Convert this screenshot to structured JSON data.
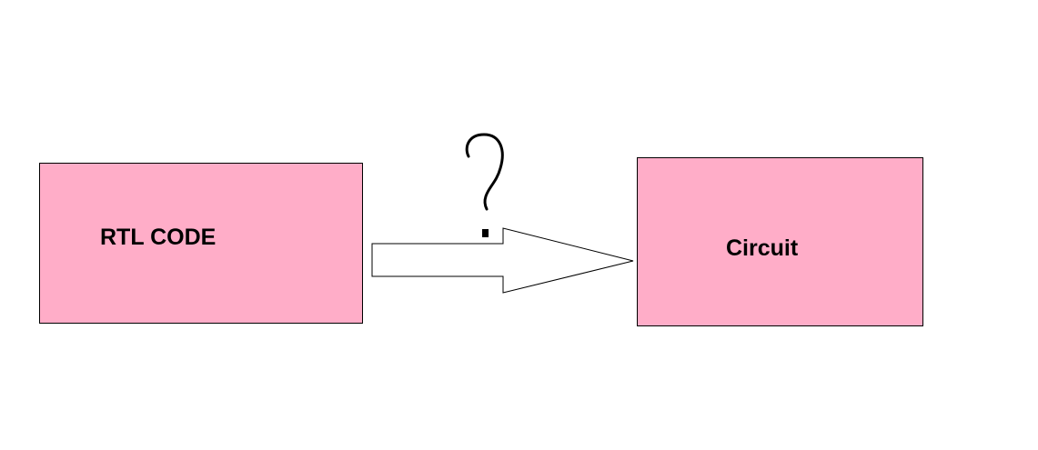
{
  "nodes": [
    {
      "id": "rtl",
      "label": "RTL CODE"
    },
    {
      "id": "circuit",
      "label": "Circuit"
    }
  ],
  "edge": {
    "from": "rtl",
    "to": "circuit",
    "annotation": "?"
  },
  "colors": {
    "node_fill": "#ffadc8",
    "node_border": "#000000",
    "arrow_fill": "#ffffff",
    "arrow_stroke": "#000000",
    "background": "#ffffff"
  }
}
